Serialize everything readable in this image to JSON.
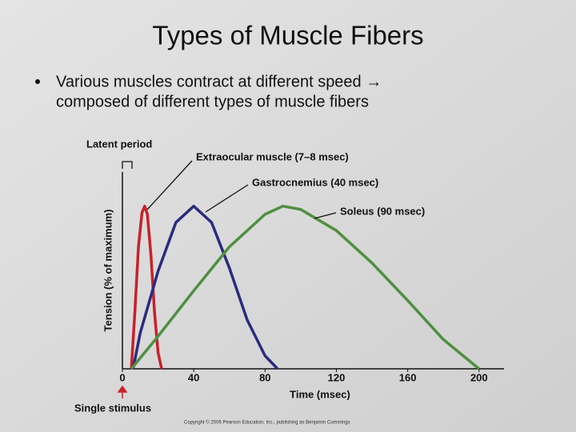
{
  "slide": {
    "title": "Types of Muscle Fibers",
    "bullet": [
      "Various muscles contract at different speed →",
      "composed of different types of muscle fibers"
    ]
  },
  "chart_data": {
    "type": "line",
    "xlabel": "Time (msec)",
    "ylabel": "Tension (% of maximum)",
    "xlim": [
      0,
      214
    ],
    "ylim": [
      0,
      121
    ],
    "xticks": [
      0,
      40,
      80,
      120,
      160,
      200
    ],
    "annotations": [
      "Latent period",
      "Single stimulus",
      "Copyright © 2006 Pearson Education, Inc., publishing as Benjamin Cummings"
    ],
    "series": [
      {
        "name": "Extraocular muscle (7–8 msec)",
        "color": "#c8202a",
        "x": [
          5,
          7,
          9,
          11,
          12.5,
          14,
          16,
          18,
          20,
          22
        ],
        "values": [
          0,
          35,
          75,
          96,
          100,
          95,
          70,
          35,
          10,
          0
        ]
      },
      {
        "name": "Gastrocnemius (40 msec)",
        "color": "#2b2b7e",
        "x": [
          6,
          10,
          20,
          30,
          40,
          50,
          60,
          70,
          80,
          87
        ],
        "values": [
          0,
          22,
          60,
          90,
          100,
          90,
          62,
          30,
          8,
          0
        ]
      },
      {
        "name": "Soleus (90 msec)",
        "color": "#4e9040",
        "x": [
          5,
          20,
          40,
          60,
          80,
          90,
          100,
          120,
          140,
          160,
          180,
          200
        ],
        "values": [
          0,
          20,
          48,
          75,
          95,
          100,
          98,
          85,
          65,
          42,
          18,
          0
        ]
      }
    ]
  }
}
